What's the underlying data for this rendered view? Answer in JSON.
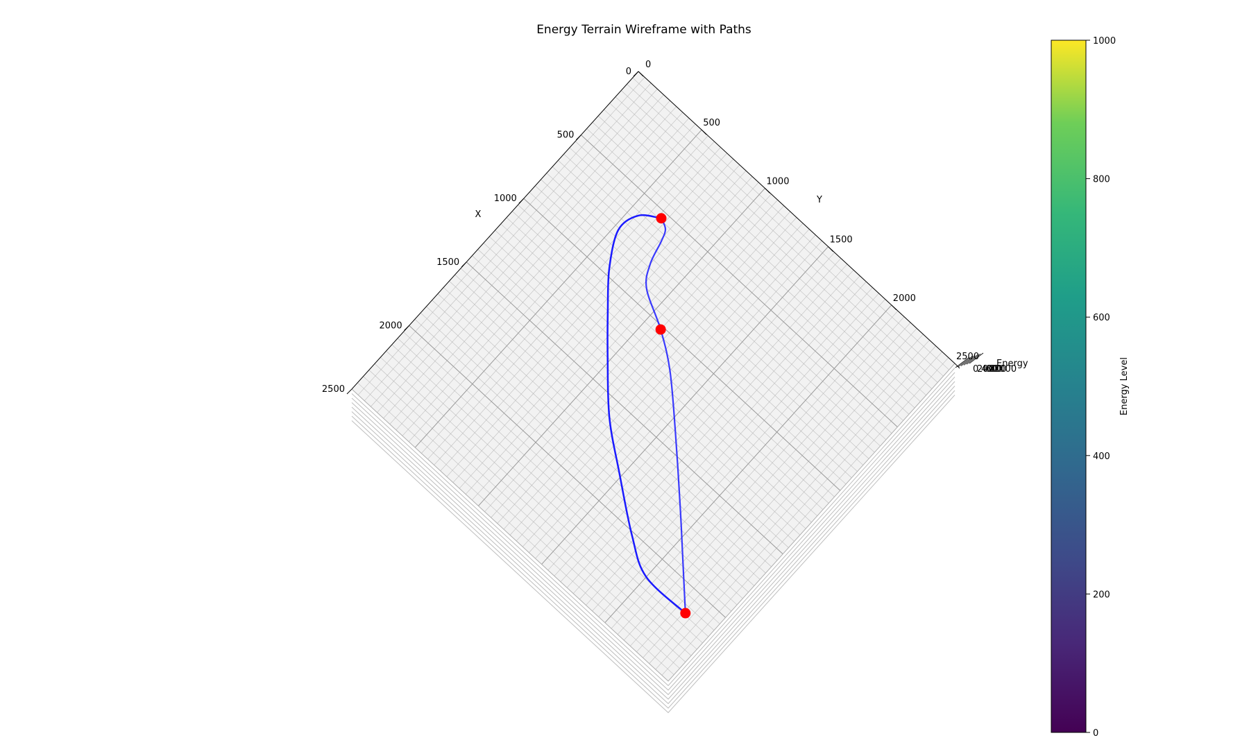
{
  "chart_data": [
    {
      "type": "surface",
      "title": "Energy Terrain Wireframe with Paths",
      "xlabel": "X",
      "ylabel": "Y",
      "zlabel": "Energy",
      "x_ticks": [
        "0",
        "500",
        "1000",
        "1500",
        "2000",
        "2500"
      ],
      "y_ticks": [
        "0",
        "500",
        "1000",
        "1500",
        "2000",
        "2500"
      ],
      "z_ticks": [
        "0",
        "200",
        "400",
        "600",
        "800",
        "1000"
      ],
      "xlim": [
        0,
        2500
      ],
      "ylim": [
        0,
        2500
      ],
      "zlim": [
        0,
        1000
      ],
      "wireframe_color": "#b4b4b4",
      "pane_color": "#f2f2f2",
      "path_color": "#1a1aff",
      "marker_color": "#ff0000",
      "markers": [
        {
          "x": 540,
          "y": 670
        },
        {
          "x": 1020,
          "y": 1100
        },
        {
          "x": 2140,
          "y": 2310
        }
      ],
      "paths": [
        {
          "points": [
            [
              540,
              670
            ],
            [
              620,
              560
            ],
            [
              760,
              530
            ],
            [
              960,
              640
            ],
            [
              1150,
              800
            ],
            [
              1350,
              980
            ],
            [
              1600,
              1220
            ],
            [
              1800,
              1480
            ],
            [
              2020,
              1780
            ],
            [
              2140,
              2000
            ],
            [
              2140,
              2310
            ]
          ]
        },
        {
          "points": [
            [
              540,
              670
            ],
            [
              570,
              730
            ],
            [
              640,
              760
            ],
            [
              780,
              800
            ],
            [
              900,
              880
            ],
            [
              1020,
              1100
            ],
            [
              1160,
              1300
            ],
            [
              1400,
              1560
            ],
            [
              1700,
              1870
            ],
            [
              1940,
              2110
            ],
            [
              2140,
              2310
            ]
          ]
        }
      ]
    },
    {
      "type": "colorbar",
      "label": "Energy Level",
      "colormap": "viridis",
      "range": [
        0,
        1000
      ],
      "ticks": [
        "0",
        "200",
        "400",
        "600",
        "800",
        "1000"
      ]
    }
  ]
}
